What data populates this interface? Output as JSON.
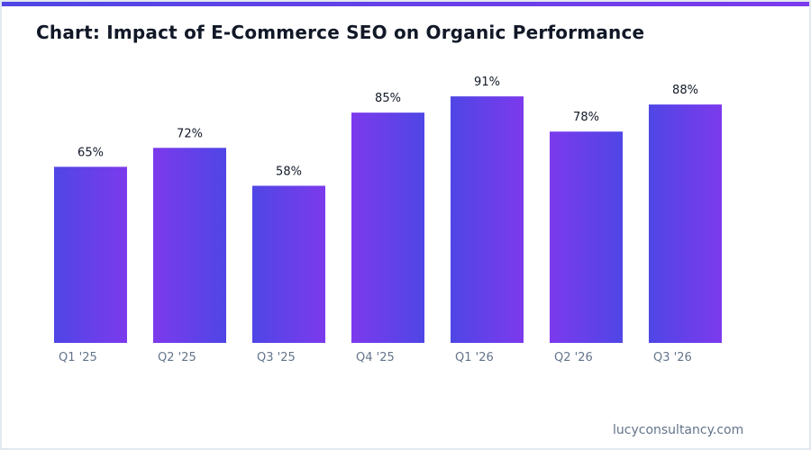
{
  "chart_data": {
    "type": "bar",
    "title": "Chart: Impact of E-Commerce SEO on Organic Performance",
    "categories": [
      "Q1 '25",
      "Q2 '25",
      "Q3 '25",
      "Q4 '25",
      "Q1 '26",
      "Q2 '26",
      "Q3 '26"
    ],
    "values": [
      65,
      72,
      58,
      85,
      91,
      78,
      88
    ],
    "data_labels": [
      "65%",
      "72%",
      "58%",
      "85%",
      "91%",
      "78%",
      "88%"
    ],
    "unit": "%",
    "ylim": [
      0,
      100
    ],
    "grid": false,
    "colors": {
      "blue": "#4f46e5",
      "purple": "#7c3aed"
    }
  },
  "footer": {
    "credit": "lucyconsultancy.com"
  }
}
